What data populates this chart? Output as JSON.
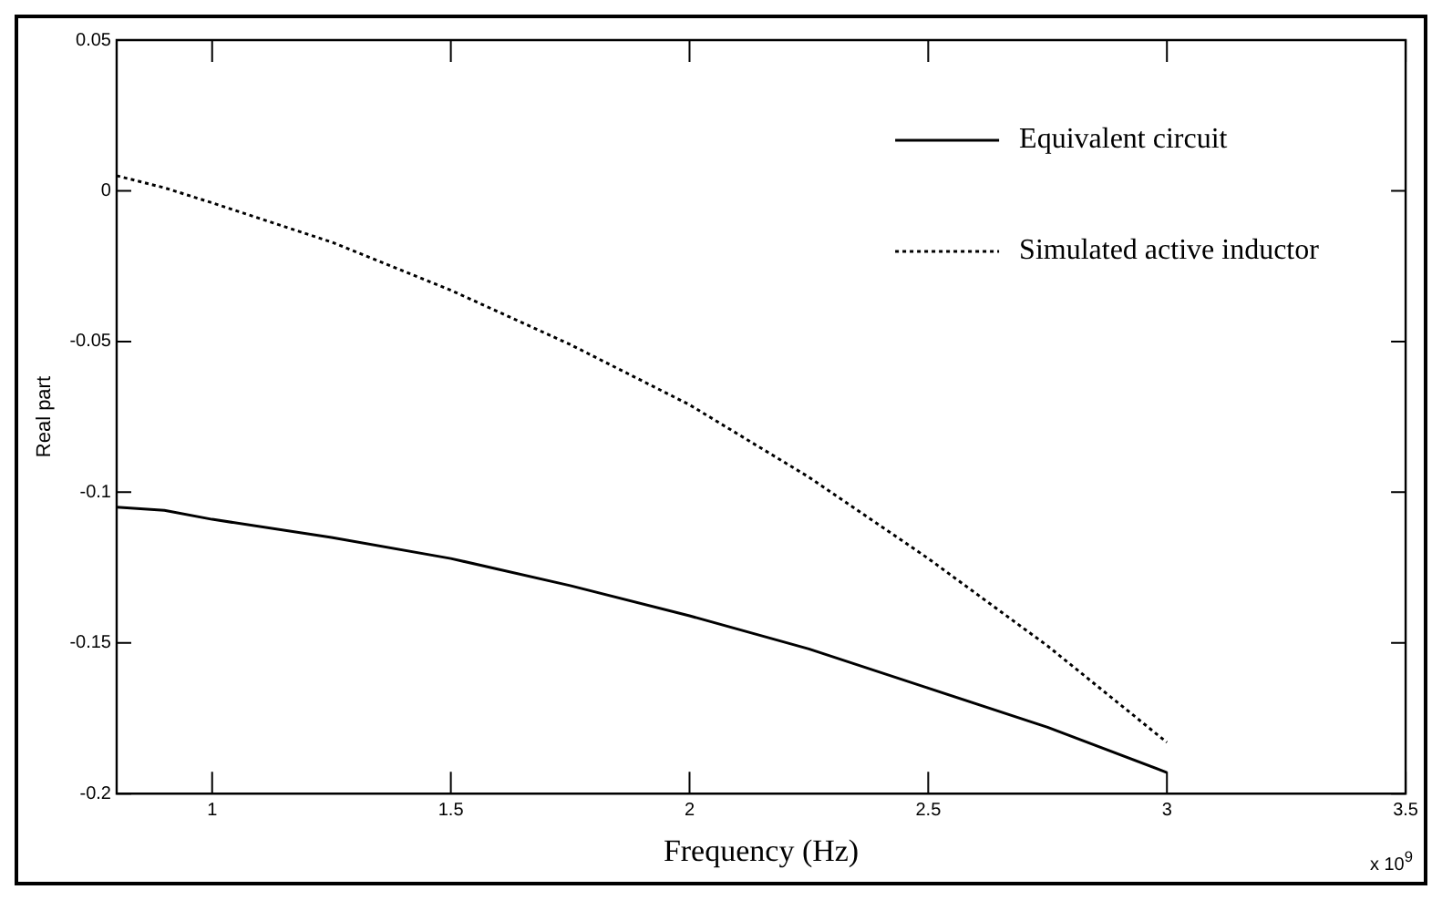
{
  "chart_data": {
    "type": "line",
    "xlabel": "Frequency (Hz)",
    "ylabel": "Real part",
    "annotations": [
      "x 10$^{9}$"
    ],
    "xlim": [
      0.8,
      3.5
    ],
    "xticks": [
      1,
      1.5,
      2,
      2.5,
      3,
      3.5
    ],
    "ylim": [
      -0.2,
      0.05
    ],
    "yticks": [
      -0.2,
      -0.15,
      -0.1,
      -0.05,
      0,
      0.05
    ],
    "grid": false,
    "legend": "top right",
    "marker": "none",
    "series": [
      {
        "name": "Equivalent circuit",
        "color": "#000000",
        "line_style": "solid",
        "x": [
          0.8,
          0.9,
          1,
          1.25,
          1.5,
          1.75,
          2,
          2.25,
          2.5,
          2.75,
          3
        ],
        "values": [
          -0.105,
          -0.106,
          -0.109,
          -0.115,
          -0.122,
          -0.131,
          -0.141,
          -0.152,
          -0.165,
          -0.178,
          -0.193
        ]
      },
      {
        "name": "Simulated active inductor",
        "color": "#000000",
        "line_style": "dotted",
        "x": [
          0.8,
          0.9,
          1,
          1.25,
          1.5,
          1.75,
          2,
          2.25,
          2.5,
          2.75,
          3
        ],
        "values": [
          0.005,
          0.001,
          -0.004,
          -0.017,
          -0.033,
          -0.051,
          -0.071,
          -0.095,
          -0.122,
          -0.151,
          -0.183
        ]
      }
    ]
  }
}
